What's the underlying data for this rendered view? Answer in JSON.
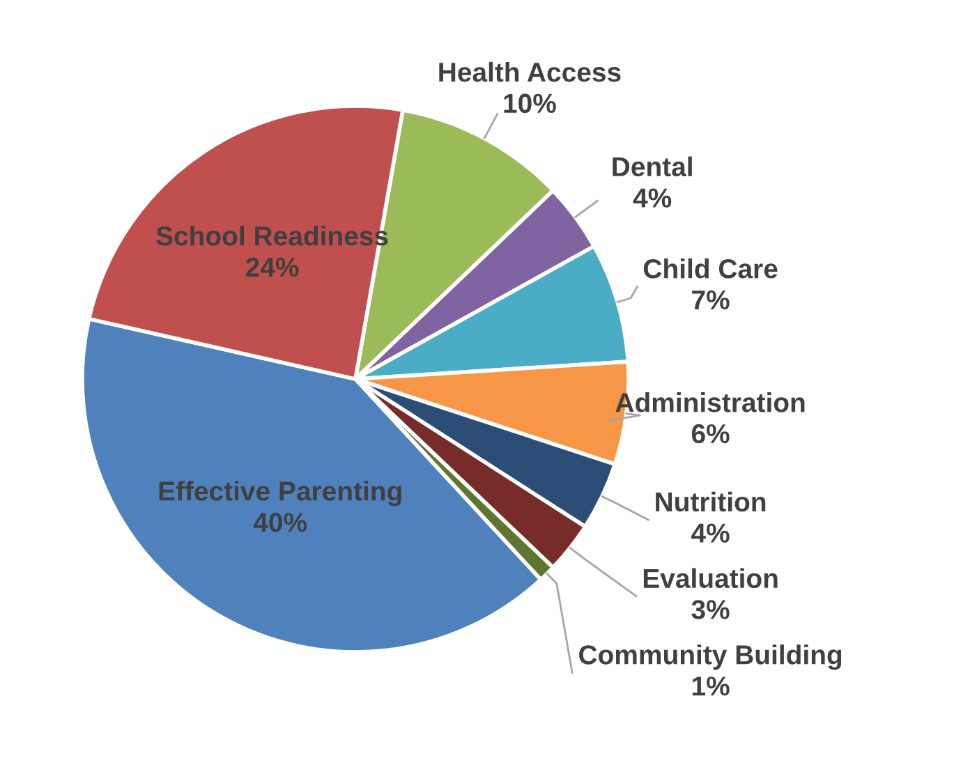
{
  "chart_data": {
    "type": "pie",
    "categories": [
      "Health Access",
      "Dental",
      "Child Care",
      "Administration",
      "Nutrition",
      "Evaluation",
      "Community Building",
      "Effective Parenting",
      "School Readiness"
    ],
    "values": [
      10,
      4,
      7,
      6,
      4,
      3,
      1,
      40,
      24
    ],
    "colors": [
      "#9bbb59",
      "#8064a2",
      "#4bacc6",
      "#f79646",
      "#2c4d75",
      "#772c2a",
      "#5f7530",
      "#4f81bd",
      "#c0504d"
    ],
    "value_labels": [
      "10%",
      "4%",
      "7%",
      "6%",
      "4%",
      "3%",
      "1%",
      "40%",
      "24%"
    ]
  }
}
